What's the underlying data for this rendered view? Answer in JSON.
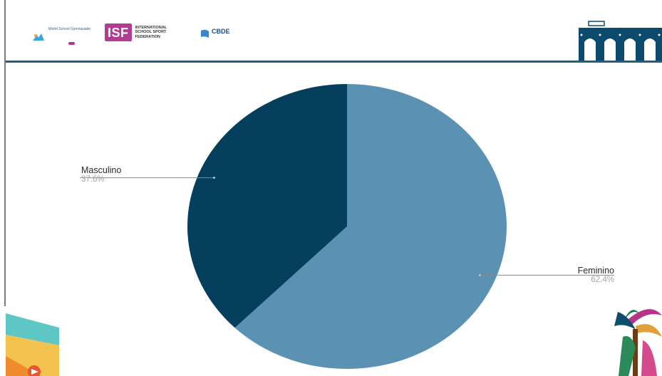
{
  "header": {
    "logo_wgs_text": "World School Gymnasiade",
    "isf": {
      "badge": "ISF",
      "sub_line1": "INTERNATIONAL",
      "sub_line2": "SCHOOL SPORT",
      "sub_line3": "FEDERATION"
    },
    "cbde": {
      "name": "CBDE"
    }
  },
  "colors": {
    "rule": "#1f5f85",
    "feminino": "#5b92b3",
    "masculino": "#04405d",
    "isf": "#b23b94"
  },
  "chart_data": {
    "type": "pie",
    "title": "",
    "slices": [
      {
        "label": "Feminino",
        "value": 62.4,
        "display": "62.4%",
        "color": "#5b92b3"
      },
      {
        "label": "Masculino",
        "value": 37.6,
        "display": "37.6%",
        "color": "#04405d"
      }
    ],
    "start_angle": "top",
    "direction": "clockwise"
  }
}
